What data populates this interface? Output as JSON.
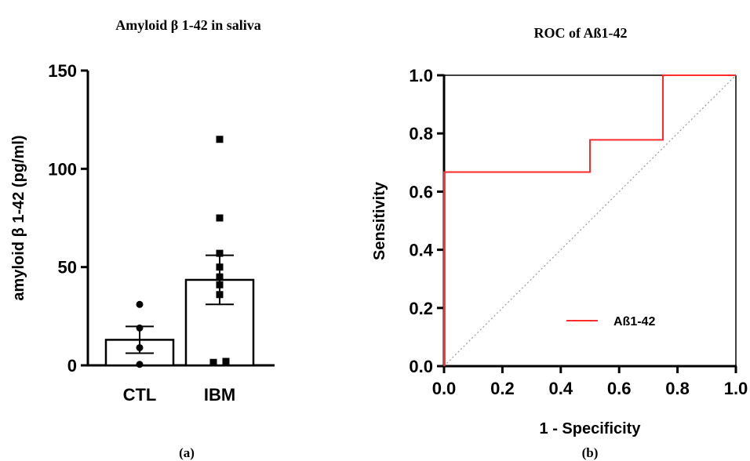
{
  "panel_labels": [
    "(a)",
    "(b)"
  ],
  "chart_data": [
    {
      "type": "bar",
      "title": "Amyloid β 1-42 in saliva",
      "xlabel": "",
      "ylabel": "amyloid β 1-42 (pg/ml)",
      "ylim": [
        0,
        150
      ],
      "yticks": [
        0,
        50,
        100,
        150
      ],
      "categories": [
        "CTL",
        "IBM"
      ],
      "values": [
        13,
        43.5
      ],
      "error_sem": [
        6.8,
        12.5
      ],
      "points": [
        [
          31,
          19,
          9,
          0.5
        ],
        [
          115,
          75,
          57,
          50,
          45,
          41,
          36,
          2,
          1.5
        ]
      ],
      "colors": {
        "bar_fill": "#ffffff",
        "bar_stroke": "#000000",
        "points": "#000000"
      }
    },
    {
      "type": "line",
      "title": "ROC of Aß1-42",
      "xlabel": "1 - Specificity",
      "ylabel": "Sensitivity",
      "xlim": [
        0,
        1
      ],
      "ylim": [
        0,
        1
      ],
      "xticks": [
        "0.0",
        "0.2",
        "0.4",
        "0.6",
        "0.8",
        "1.0"
      ],
      "yticks": [
        "0.0",
        "0.2",
        "0.4",
        "0.6",
        "0.8",
        "1.0"
      ],
      "legend_position": "bottom-right",
      "series": [
        {
          "name": "Aß1-42",
          "color": "#ff2a2a",
          "x": [
            0,
            0,
            0.5,
            0.5,
            0.75,
            0.75,
            1
          ],
          "y": [
            0,
            0.667,
            0.667,
            0.778,
            0.778,
            1,
            1
          ]
        }
      ],
      "reference_line": {
        "x": [
          0,
          1
        ],
        "y": [
          0,
          1
        ],
        "style": "dotted",
        "color": "#999999"
      }
    }
  ]
}
